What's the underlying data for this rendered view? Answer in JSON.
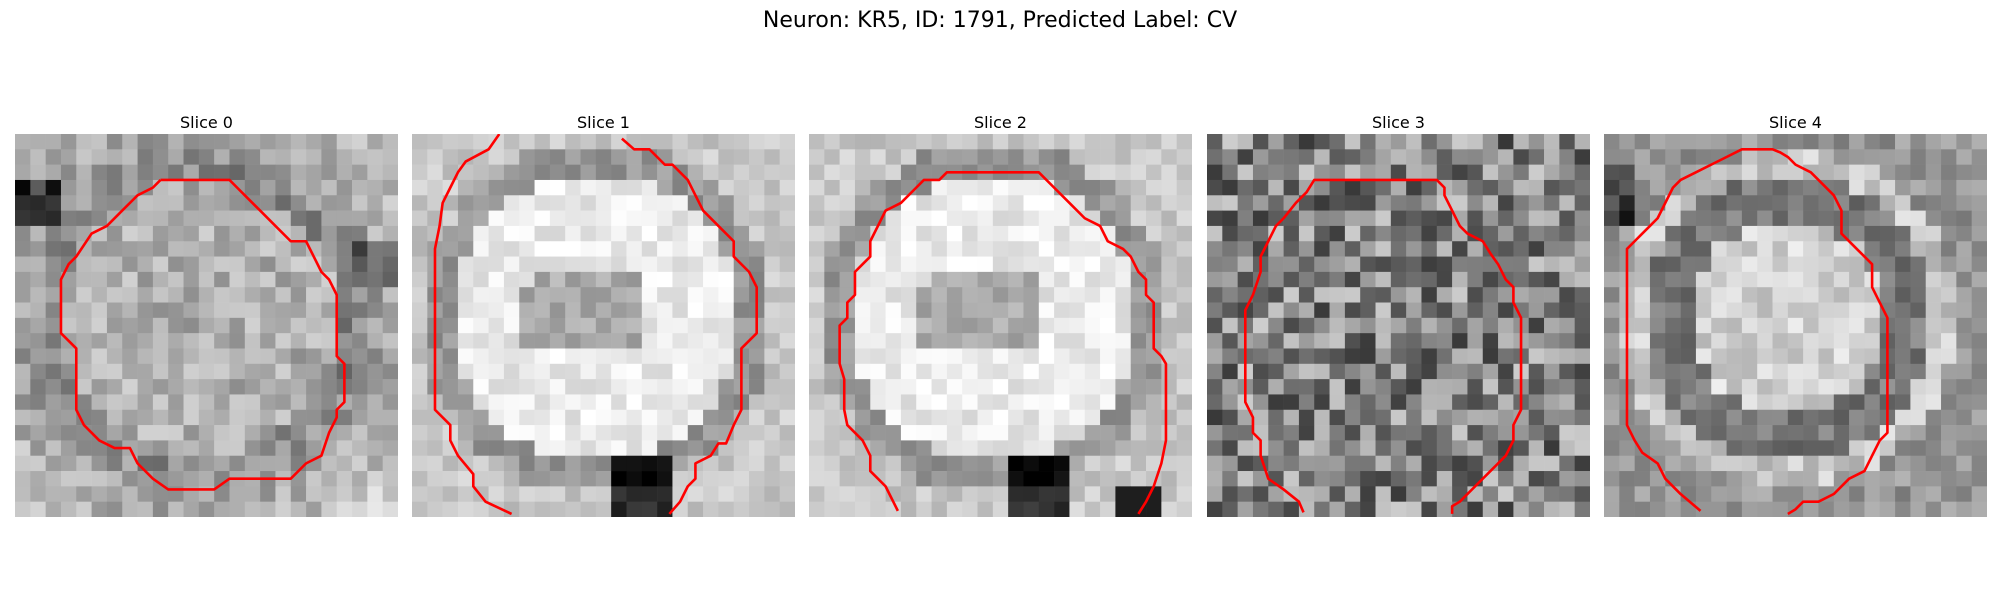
{
  "figure": {
    "title": "Neuron: KR5, ID: 1791, Predicted Label: CV",
    "contour_color": "#ff0000",
    "panels": [
      {
        "label": "Slice 0",
        "tone": "gray"
      },
      {
        "label": "Slice 1",
        "tone": "light"
      },
      {
        "label": "Slice 2",
        "tone": "light"
      },
      {
        "label": "Slice 3",
        "tone": "dark-noisy"
      },
      {
        "label": "Slice 4",
        "tone": "ring"
      }
    ]
  }
}
